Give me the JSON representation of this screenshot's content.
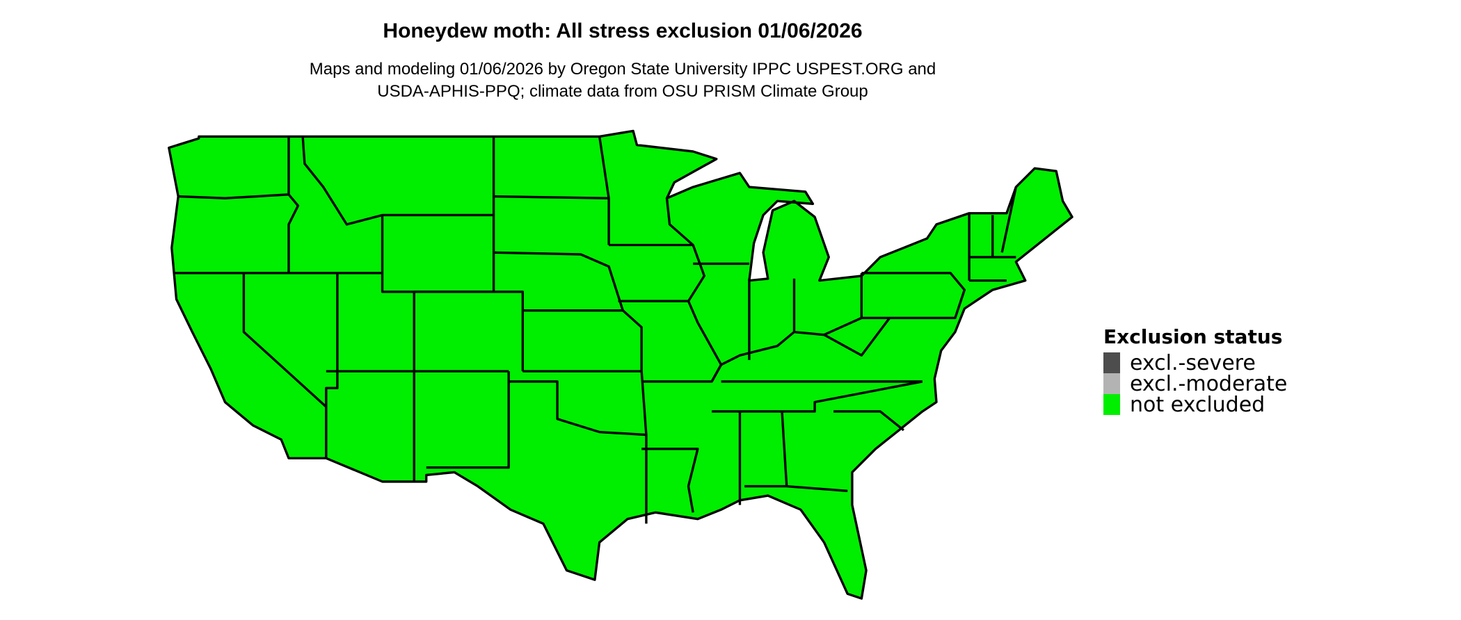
{
  "title": "Honeydew moth: All stress exclusion 01/06/2026",
  "subtitle_lines": [
    "Maps and modeling 01/06/2026 by Oregon State University IPPC USPEST.ORG and",
    "USDA-APHIS-PPQ; climate data from OSU PRISM Climate Group"
  ],
  "map": {
    "region": "Contiguous United States",
    "fill_status": "not excluded",
    "fill_color": "#00EE00",
    "border_color": "#000000"
  },
  "legend": {
    "title": "Exclusion status",
    "items": [
      {
        "label": "excl.-severe",
        "color": "#4D4D4D"
      },
      {
        "label": "excl.-moderate",
        "color": "#B3B3B3"
      },
      {
        "label": "not excluded",
        "color": "#00EE00"
      }
    ]
  }
}
